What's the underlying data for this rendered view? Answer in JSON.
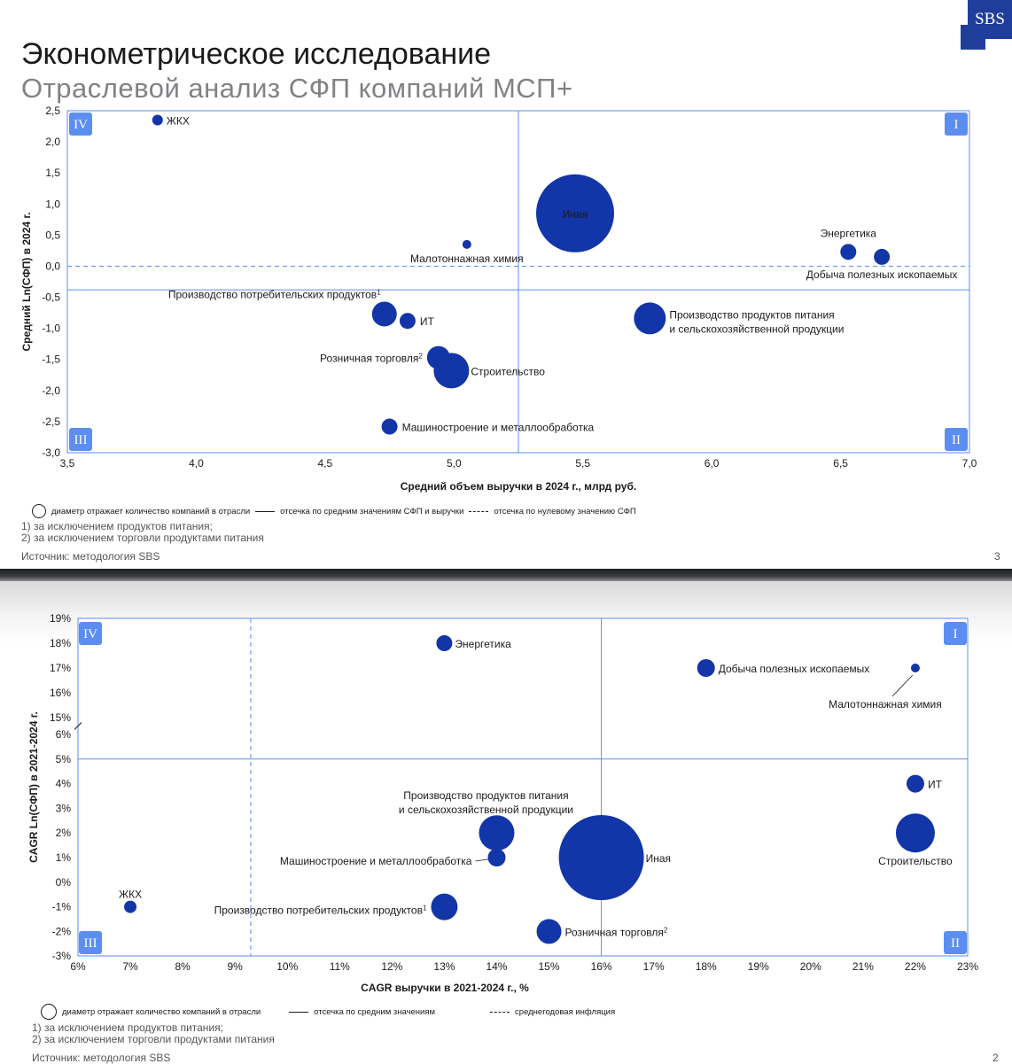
{
  "brand": {
    "logo": "SBS",
    "color": "#1f3e9c"
  },
  "colors": {
    "bubble": "#1235a8",
    "axis": "#5b8ef0",
    "quadrant_box": "#5b8ef0"
  },
  "slide1": {
    "title": "Эконометрическое исследование",
    "subtitle": "Отраслевой анализ СФП компаний МСП+",
    "legend": {
      "bubble": "диаметр отражает количество компаний в отрасли",
      "solid": "отсечка по средним значениям СФП и выручки",
      "dashed": "отсечка по нулевому значению СФП"
    },
    "notes": [
      "1) за исключением продуктов питания;",
      "2) за исключением торговли продуктами питания"
    ],
    "source": "Источник: методология SBS",
    "page": "3"
  },
  "slide2": {
    "legend": {
      "bubble": "диаметр отражает количество компаний в отрасли",
      "solid": "отсечка по средним значениям",
      "dashed": "среднегодовая инфляция"
    },
    "notes": [
      "1) за исключением продуктов питания;",
      "2) за исключением торговли продуктами питания"
    ],
    "source": "Источник: методология SBS",
    "page": "2"
  },
  "chart_data": [
    {
      "type": "scatter",
      "subtype": "bubble",
      "xlabel": "Средний объем выручки в 2024 г., млрд руб.",
      "ylabel": "Средний Ln(СФП) в 2024 г.",
      "xlim": [
        3.5,
        7.0
      ],
      "ylim": [
        -3.0,
        2.5
      ],
      "xticks": [
        "3,5",
        "4,0",
        "4,5",
        "5,0",
        "5,5",
        "6,0",
        "6,5",
        "7,0"
      ],
      "yticks": [
        "2,5",
        "2,0",
        "1,5",
        "1,0",
        "0,5",
        "0,0",
        "-0,5",
        "-1,0",
        "-1,5",
        "-2,0",
        "-2,5",
        "-3,0"
      ],
      "quadrants": [
        "IV",
        "I",
        "III",
        "II"
      ],
      "mean_cutoff": {
        "x": 5.25,
        "y": -0.38
      },
      "zero_cutoff": {
        "y": 0.0
      },
      "points": [
        {
          "label": "ЖКХ",
          "x": 3.85,
          "y": 2.35,
          "size": 6
        },
        {
          "label": "Иная",
          "x": 5.47,
          "y": 0.85,
          "size": 44
        },
        {
          "label": "Малотоннажная химия",
          "x": 5.05,
          "y": 0.35,
          "size": 5
        },
        {
          "label": "Энергетика",
          "x": 6.53,
          "y": 0.23,
          "size": 9
        },
        {
          "label": "Добыча полезных ископаемых",
          "x": 6.66,
          "y": 0.15,
          "size": 9
        },
        {
          "label": "Производство потребительских продуктов",
          "sup": "1",
          "x": 4.73,
          "y": -0.77,
          "size": 14
        },
        {
          "label": "ИТ",
          "x": 4.82,
          "y": -0.88,
          "size": 9
        },
        {
          "label": "Производство продуктов питания",
          "label2": "и сельскохозяйственной продукции",
          "x": 5.76,
          "y": -0.84,
          "size": 18
        },
        {
          "label": "Розничная торговля",
          "sup": "2",
          "x": 4.94,
          "y": -1.47,
          "size": 13
        },
        {
          "label": "Строительство",
          "x": 4.99,
          "y": -1.68,
          "size": 20
        },
        {
          "label": "Машиностроение и металлообработка",
          "x": 4.75,
          "y": -2.58,
          "size": 9
        }
      ]
    },
    {
      "type": "scatter",
      "subtype": "bubble",
      "xlabel": "CAGR выручки в 2021-2024 г., %",
      "ylabel": "CAGR Ln(СФП) в 2021-2024 г.",
      "xlim": [
        6,
        23
      ],
      "ylim": [
        -3,
        19
      ],
      "axis_break": "6%–15%",
      "xticks": [
        "6%",
        "7%",
        "8%",
        "9%",
        "10%",
        "11%",
        "12%",
        "13%",
        "14%",
        "15%",
        "16%",
        "17%",
        "18%",
        "19%",
        "20%",
        "21%",
        "22%",
        "23%"
      ],
      "yticks": [
        "19%",
        "18%",
        "17%",
        "16%",
        "15%",
        "6%",
        "5%",
        "4%",
        "3%",
        "2%",
        "1%",
        "0%",
        "-1%",
        "-2%",
        "-3%"
      ],
      "quadrants": [
        "IV",
        "I",
        "III",
        "II"
      ],
      "mean_cutoff": {
        "x": 16.0,
        "y": 5.0
      },
      "inflation_cutoff": {
        "x": 9.3
      },
      "points": [
        {
          "label": "Энергетика",
          "x": 13.0,
          "y": 18.0,
          "size": 9
        },
        {
          "label": "Добыча полезных ископаемых",
          "x": 18.0,
          "y": 17.0,
          "size": 10
        },
        {
          "label": "Малотоннажная химия",
          "x": 22.0,
          "y": 17.0,
          "size": 5
        },
        {
          "label": "ИТ",
          "x": 22.0,
          "y": 4.0,
          "size": 10
        },
        {
          "label": "Строительство",
          "x": 22.0,
          "y": 2.0,
          "size": 22
        },
        {
          "label": "Производство продуктов питания",
          "label2": "и сельскохозяйственной продукции",
          "x": 14.0,
          "y": 2.0,
          "size": 20
        },
        {
          "label": "Иная",
          "x": 16.0,
          "y": 1.0,
          "size": 48
        },
        {
          "label": "Машиностроение и металлообработка",
          "x": 14.0,
          "y": 1.0,
          "size": 10
        },
        {
          "label": "ЖКХ",
          "x": 7.0,
          "y": -1.0,
          "size": 7
        },
        {
          "label": "Производство потребительских продуктов",
          "sup": "1",
          "x": 13.0,
          "y": -1.0,
          "size": 15
        },
        {
          "label": "Розничная торговля",
          "sup": "2",
          "x": 15.0,
          "y": -2.0,
          "size": 14
        }
      ]
    }
  ]
}
